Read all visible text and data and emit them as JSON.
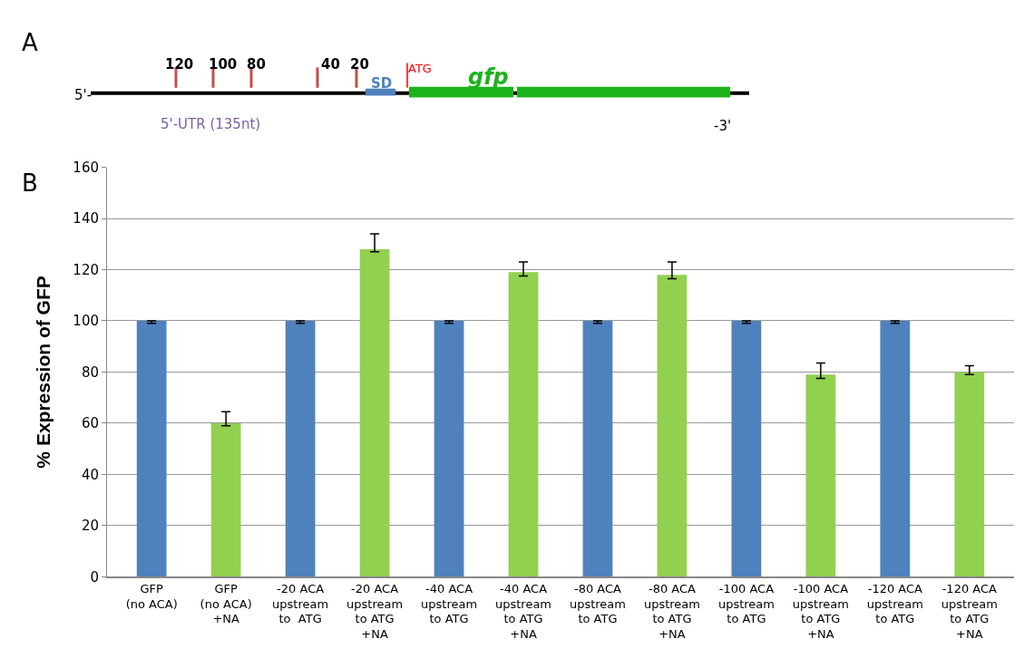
{
  "chart_data": [
    {
      "type": "other",
      "annotations": [
        "A",
        "5'-",
        "120",
        "100",
        "80",
        "40",
        "20",
        "SD",
        "ATG",
        "gfp",
        "5'-UTR (135nt)",
        "-3'"
      ]
    },
    {
      "type": "bar",
      "annotations": [
        "B"
      ],
      "ylabel": "% Expression of GFP",
      "categories": [
        "GFP\n(no ACA)",
        "GFP\n(no ACA)\n+NA",
        "-20 ACA\nupstream\nto  ATG",
        "-20 ACA\nupstream\nto ATG\n+NA",
        "-40 ACA\nupstream\nto ATG",
        "-40 ACA\nupstream\nto ATG\n+NA",
        "-80 ACA\nupstream\nto ATG",
        "-80 ACA\nupstream\nto ATG\n+NA",
        "-100 ACA\nupstream\nto ATG",
        "-100 ACA\nupstream\nto ATG\n+NA",
        "-120 ACA\nupstream\nto ATG",
        "-120 ACA\nupstream\nto ATG\n+NA"
      ],
      "values": [
        100,
        60,
        100,
        128,
        100,
        119,
        100,
        118,
        100,
        79,
        100,
        80
      ],
      "colors": [
        "#4f81bd",
        "#92d050",
        "#4f81bd",
        "#92d050",
        "#4f81bd",
        "#92d050",
        "#4f81bd",
        "#92d050",
        "#4f81bd",
        "#92d050",
        "#4f81bd",
        "#92d050"
      ],
      "errors": [
        [
          99,
          100
        ],
        [
          59,
          64.5
        ],
        [
          99,
          100
        ],
        [
          127,
          134
        ],
        [
          99,
          100
        ],
        [
          117.5,
          123
        ],
        [
          99,
          100
        ],
        [
          116.5,
          123
        ],
        [
          99,
          100
        ],
        [
          77.5,
          83.5
        ],
        [
          99,
          100
        ],
        [
          79,
          82.5
        ]
      ],
      "ylim": [
        0,
        160
      ],
      "yticks": [
        0,
        20,
        40,
        60,
        80,
        100,
        120,
        140,
        160
      ],
      "grid": "y",
      "legend": false
    }
  ]
}
